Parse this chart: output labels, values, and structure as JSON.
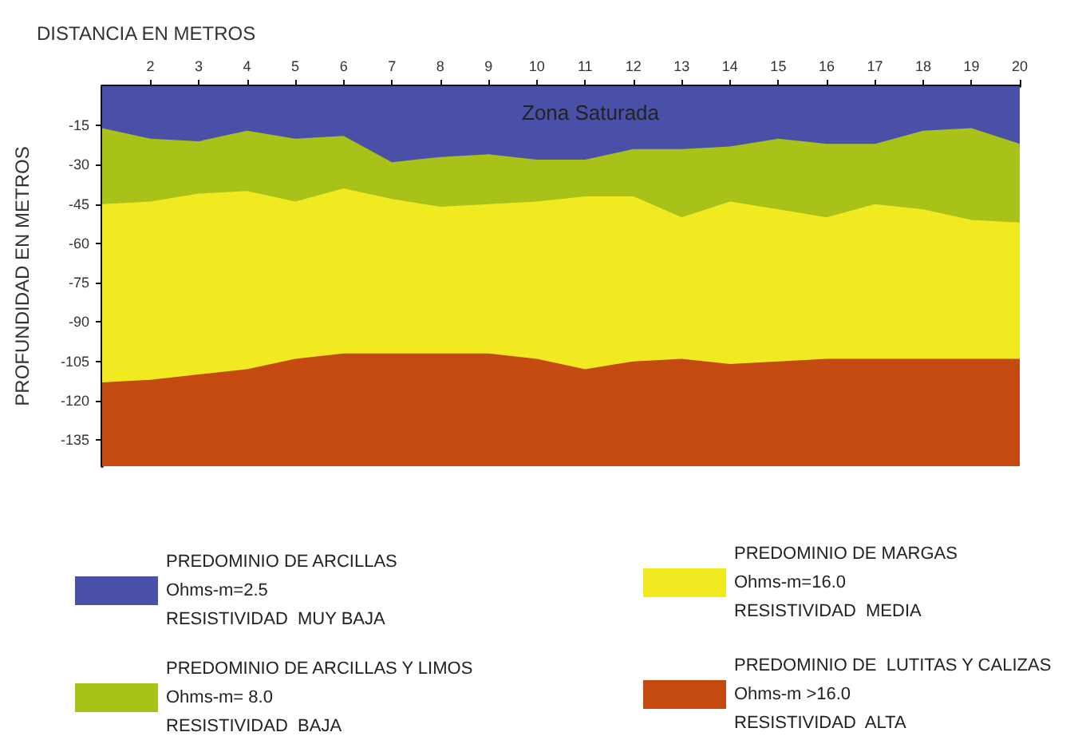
{
  "chart_data": {
    "type": "area",
    "stacked": true,
    "title": "DISTANCIA EN METROS",
    "ylabel": "PROFUNDIDAD EN METROS",
    "x": [
      1,
      2,
      3,
      4,
      5,
      6,
      7,
      8,
      9,
      10,
      11,
      12,
      13,
      14,
      15,
      16,
      17,
      18,
      19,
      20
    ],
    "series": [
      {
        "name": "PREDOMINIO DE ARCILLAS\nOhms-m=2.5\nRESISTIVIDAD  MUY BAJA",
        "color": "#4a4fa8",
        "values": [
          -16,
          -20,
          -21,
          -17,
          -20,
          -19,
          -29,
          -27,
          -26,
          -28,
          -28,
          -24,
          -24,
          -23,
          -20,
          -22,
          -22,
          -17,
          -16,
          -22
        ]
      },
      {
        "name": "PREDOMINIO DE ARCILLAS Y LIMOS\nOhms-m= 8.0\nRESISTIVIDAD  BAJA",
        "color": "#a8c21a",
        "values": [
          -29,
          -24,
          -20,
          -23,
          -24,
          -20,
          -14,
          -19,
          -19,
          -16,
          -14,
          -18,
          -26,
          -21,
          -27,
          -28,
          -23,
          -30,
          -35,
          -30
        ]
      },
      {
        "name": "PREDOMINIO DE MARGAS\nOhms-m=16.0\nRESISTIVIDAD  MEDIA",
        "color": "#f2ea20",
        "values": [
          -68,
          -68,
          -69,
          -68,
          -60,
          -63,
          -59,
          -56,
          -57,
          -60,
          -66,
          -63,
          -54,
          -62,
          -58,
          -54,
          -59,
          -57,
          -53,
          -52
        ]
      },
      {
        "name": "PREDOMINIO DE  LUTITAS Y CALIZAS\nOhms-m >16.0\nRESISTIVIDAD  ALTA",
        "color": "#c44a10",
        "values": [
          -32,
          -33,
          -35,
          -37,
          -41,
          -43,
          -43,
          -43,
          -43,
          -41,
          -37,
          -40,
          -41,
          -39,
          -40,
          -41,
          -41,
          -41,
          -41,
          -41
        ]
      }
    ],
    "xlim": [
      1,
      20
    ],
    "xticks": [
      2,
      3,
      4,
      5,
      6,
      7,
      8,
      9,
      10,
      11,
      12,
      13,
      14,
      15,
      16,
      17,
      18,
      19,
      20
    ],
    "ylim": [
      -145,
      0
    ],
    "yticks": [
      -15,
      -30,
      -45,
      -60,
      -75,
      -90,
      -105,
      -120,
      -135
    ],
    "annotations": [
      "Zona Saturada"
    ],
    "legend": "bottom",
    "grid": false,
    "marker": "none"
  }
}
